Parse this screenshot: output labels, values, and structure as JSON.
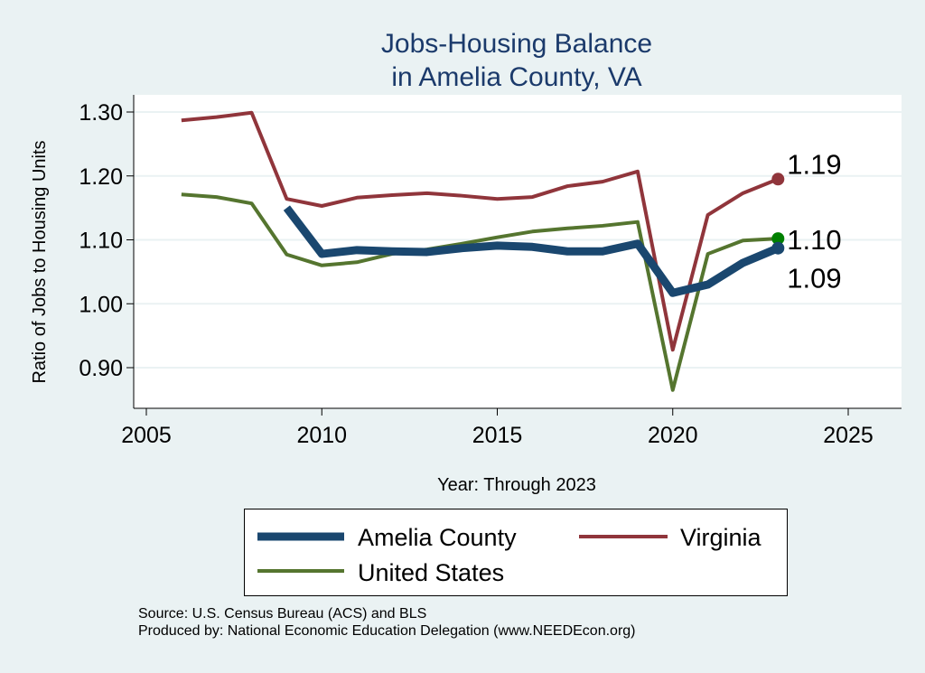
{
  "chart_data": {
    "type": "line",
    "title": [
      "Jobs-Housing Balance",
      "in Amelia County, VA"
    ],
    "xlabel": "Year: Through 2023",
    "ylabel": "Ratio of Jobs to Housing Units",
    "xlim": [
      2005,
      2026
    ],
    "ylim": [
      0.855,
      1.325
    ],
    "xticks": [
      2005,
      2010,
      2015,
      2020,
      2025
    ],
    "yticks": [
      0.9,
      1.0,
      1.1,
      1.2,
      1.3
    ],
    "ytick_labels": [
      "0.90",
      "1.00",
      "1.10",
      "1.20",
      "1.30"
    ],
    "grid": true,
    "series": [
      {
        "name": "Virginia",
        "color": "#90353b",
        "width": 4,
        "x": [
          2006,
          2007,
          2008,
          2009,
          2010,
          2011,
          2012,
          2013,
          2014,
          2015,
          2016,
          2017,
          2018,
          2019,
          2020,
          2021,
          2022,
          2023
        ],
        "y": [
          1.287,
          1.292,
          1.299,
          1.164,
          1.153,
          1.166,
          1.17,
          1.173,
          1.169,
          1.164,
          1.167,
          1.184,
          1.191,
          1.207,
          0.928,
          1.139,
          1.173,
          1.195
        ],
        "end_label": "1.19",
        "end_color": "#90353b"
      },
      {
        "name": "United States",
        "color": "#55752f",
        "width": 4,
        "x": [
          2006,
          2007,
          2008,
          2009,
          2010,
          2011,
          2012,
          2013,
          2014,
          2015,
          2016,
          2017,
          2018,
          2019,
          2020,
          2021,
          2022,
          2023
        ],
        "y": [
          1.171,
          1.167,
          1.157,
          1.077,
          1.06,
          1.065,
          1.078,
          1.085,
          1.094,
          1.104,
          1.113,
          1.118,
          1.122,
          1.128,
          0.865,
          1.078,
          1.099,
          1.102
        ],
        "end_label": "1.10",
        "end_color": "#008000"
      },
      {
        "name": "Amelia County",
        "color": "#1a476f",
        "width": 9,
        "x": [
          2009,
          2010,
          2011,
          2012,
          2013,
          2014,
          2015,
          2016,
          2017,
          2018,
          2019,
          2020,
          2021,
          2022,
          2023
        ],
        "y": [
          1.15,
          1.078,
          1.084,
          1.082,
          1.081,
          1.087,
          1.091,
          1.089,
          1.082,
          1.082,
          1.094,
          1.017,
          1.03,
          1.064,
          1.087
        ],
        "end_label": "1.09",
        "end_color": "#1a476f"
      }
    ],
    "legend": {
      "placement": "bottom",
      "entries": [
        "Amelia County",
        "Virginia",
        "United States"
      ]
    }
  },
  "source": "Source: U.S. Census Bureau (ACS) and BLS",
  "produced": "Produced by: National Economic Education Delegation (www.NEEDEcon.org)"
}
